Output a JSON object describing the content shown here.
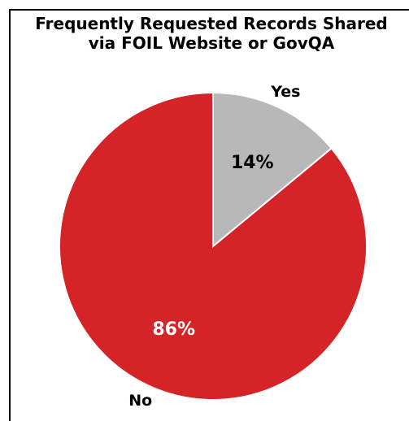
{
  "chart_data": {
    "type": "pie",
    "title": "Frequently Requested Records Shared\nvia FOIL Website or GovQA",
    "categories": [
      "Yes",
      "No"
    ],
    "values": [
      14,
      86
    ],
    "value_labels": [
      "14%",
      "86%"
    ],
    "colors": [
      "#b8b8b8",
      "#d42428"
    ],
    "label_colors": [
      "#000000",
      "#ffffff"
    ],
    "start_angle": "top",
    "direction": "clockwise",
    "legend": "none"
  }
}
